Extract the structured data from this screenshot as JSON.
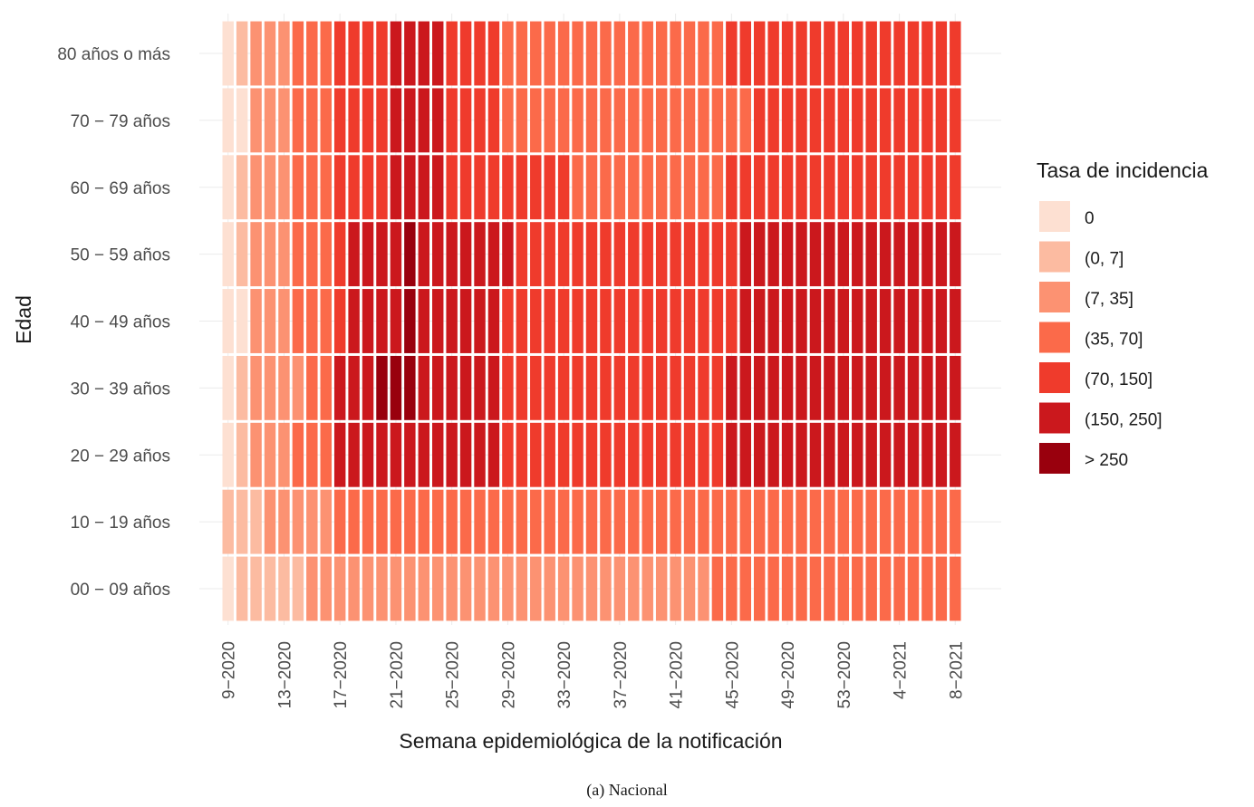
{
  "caption": "(a) Nacional",
  "chart_data": {
    "type": "heatmap",
    "title": "",
    "xlabel": "Semana epidemiológica de la notificación",
    "ylabel": "Edad",
    "x_tick_labels": [
      "9−2020",
      "13−2020",
      "17−2020",
      "21−2020",
      "25−2020",
      "29−2020",
      "33−2020",
      "37−2020",
      "41−2020",
      "45−2020",
      "49−2020",
      "53−2020",
      "4−2021",
      "8−2021"
    ],
    "y_categories": [
      "00 − 09 años",
      "10 − 19 años",
      "20 − 29 años",
      "30 − 39 años",
      "40 − 49 años",
      "50 − 59 años",
      "60 − 69 años",
      "70 − 79 años",
      "80 años o más"
    ],
    "x_count": 53,
    "x_start_label": "9−2020",
    "x_end_label": "8−2021",
    "legend": {
      "title": "Tasa de incidencia",
      "position": "right",
      "bins": [
        {
          "label": "0",
          "color": "#fde0d2"
        },
        {
          "label": "(0, 7]",
          "color": "#fcbba1"
        },
        {
          "label": "(7, 35]",
          "color": "#fc9272"
        },
        {
          "label": "(35, 70]",
          "color": "#fb6a4a"
        },
        {
          "label": "(70, 150]",
          "color": "#ef3b2c"
        },
        {
          "label": "(150, 250]",
          "color": "#cb181d"
        },
        {
          "label": "> 250",
          "color": "#99000d"
        }
      ]
    },
    "grid": true,
    "rows": [
      {
        "age": "80 años o más",
        "bins": "01222333444455554444333333333333333344444444444444444"
      },
      {
        "age": "70 − 79 años",
        "bins": "00222333444455554444333333333333333333444444444444444"
      },
      {
        "age": "60 − 69 años",
        "bins": "01222333444455554444444443333333333344444444444444444"
      },
      {
        "age": "50 − 59 años",
        "bins": "01222333455556555555544444444444444445555555555555555"
      },
      {
        "age": "40 − 49 años",
        "bins": "00222333455556555555444444444444444445555555555555555"
      },
      {
        "age": "30 − 39 años",
        "bins": "01222233555666555555444444444444444455555555555555555"
      },
      {
        "age": "20 − 29 años",
        "bins": "01222333555555555555444444444444444455555555555555555"
      },
      {
        "age": "10 − 19 años",
        "bins": "11122222333333333333333333333333333333333333333333333"
      },
      {
        "age": "00 − 09 años",
        "bins": "01111122222222222222222222222222222333333333333333333"
      }
    ]
  }
}
